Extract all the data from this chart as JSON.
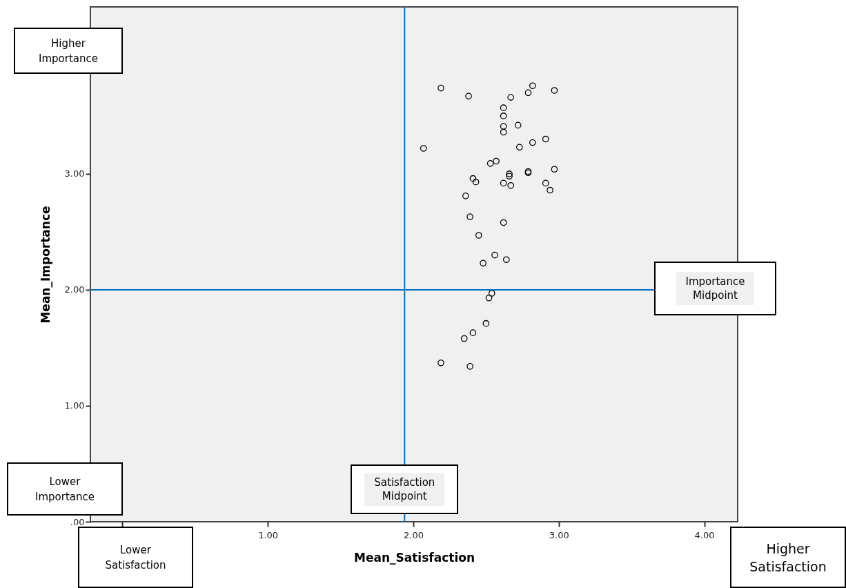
{
  "chart_data": {
    "type": "scatter",
    "xlabel": "Mean_Satisfaction",
    "ylabel": "Mean_Importance",
    "xlim": [
      -0.22,
      4.23
    ],
    "ylim": [
      0,
      4.44
    ],
    "xticks": [
      {
        "value": 0,
        "label": null
      },
      {
        "value": 1,
        "label": "1.00"
      },
      {
        "value": 2,
        "label": "2.00"
      },
      {
        "value": 3,
        "label": "3.00"
      },
      {
        "value": 4,
        "label": "4.00"
      }
    ],
    "yticks": [
      {
        "value": 0,
        "label": ".00"
      },
      {
        "value": 1,
        "label": "1.00"
      },
      {
        "value": 2,
        "label": "2.00"
      },
      {
        "value": 3,
        "label": "3.00"
      }
    ],
    "grid": false,
    "marker": "circle",
    "series": [
      {
        "color": "#000000",
        "x": [
          2.19,
          2.38,
          2.67,
          2.82,
          2.79,
          2.97,
          2.62,
          2.62,
          2.72,
          2.62,
          2.62,
          2.07,
          2.73,
          2.82,
          2.91,
          2.53,
          2.57,
          2.66,
          2.66,
          2.79,
          2.79,
          2.97,
          2.41,
          2.43,
          2.62,
          2.67,
          2.91,
          2.94,
          2.36,
          2.39,
          2.62,
          2.45,
          2.56,
          2.48,
          2.64,
          2.54,
          2.52,
          2.5,
          2.41,
          2.35,
          2.19,
          2.39
        ],
        "values": [
          3.74,
          3.67,
          3.66,
          3.76,
          3.7,
          3.72,
          3.57,
          3.5,
          3.42,
          3.41,
          3.36,
          3.22,
          3.23,
          3.27,
          3.3,
          3.09,
          3.11,
          3.0,
          2.98,
          3.02,
          3.01,
          3.04,
          2.96,
          2.93,
          2.92,
          2.9,
          2.92,
          2.86,
          2.81,
          2.63,
          2.58,
          2.47,
          2.3,
          2.23,
          2.26,
          1.97,
          1.93,
          1.71,
          1.63,
          1.58,
          1.37,
          1.34
        ]
      }
    ],
    "ref_lines": [
      {
        "axis": "x",
        "value": 1.94,
        "label": "Satisfaction Midpoint",
        "color": "#0070c0"
      },
      {
        "axis": "y",
        "value": 2.0,
        "label": "Importance Midpoint",
        "color": "#0070c0"
      }
    ],
    "annotations": [
      "Higher Importance",
      "Lower Importance",
      "Lower Satisfaction",
      "Higher Satisfaction"
    ]
  }
}
